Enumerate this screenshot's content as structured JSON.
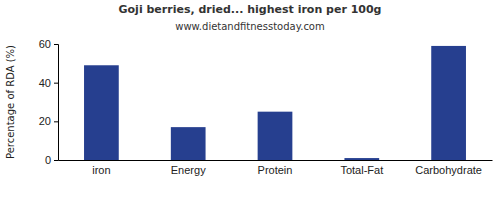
{
  "chart_data": {
    "type": "bar",
    "title": "Goji berries, dried... highest iron per 100g",
    "subtitle": "www.dietandfitnesstoday.com",
    "y_label": "Percentage of RDA (%)",
    "categories": [
      "iron",
      "Energy",
      "Protein",
      "Total-Fat",
      "Carbohydrate"
    ],
    "values": [
      49,
      17,
      25,
      1,
      59
    ],
    "color": "#263f8f",
    "ylim": [
      0,
      60
    ],
    "yticks": [
      0,
      20,
      40,
      60
    ],
    "grid": false
  }
}
